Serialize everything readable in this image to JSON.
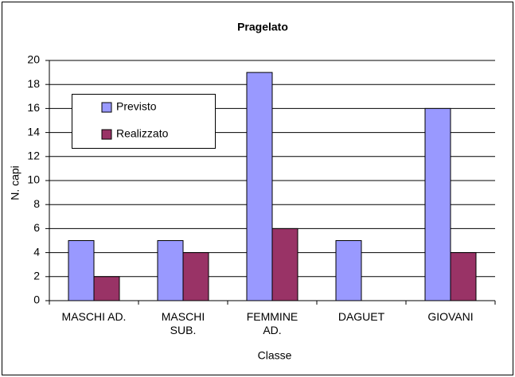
{
  "chart_data": {
    "type": "bar",
    "title": "Pragelato",
    "categories": [
      "MASCHI AD.",
      "MASCHI SUB.",
      "FEMMINE AD.",
      "DAGUET",
      "GIOVANI"
    ],
    "series": [
      {
        "name": "Previsto",
        "color": "#9999ff",
        "values": [
          5,
          5,
          19,
          5,
          16
        ]
      },
      {
        "name": "Realizzato",
        "color": "#993366",
        "values": [
          2,
          4,
          6,
          0,
          4
        ]
      }
    ],
    "x_label": "Classe",
    "y_label": "N. capi",
    "ylim": [
      0,
      20
    ],
    "yticks": [
      0,
      2,
      4,
      6,
      8,
      10,
      12,
      14,
      16,
      18,
      20
    ],
    "grid": true,
    "legend": "top-left"
  }
}
